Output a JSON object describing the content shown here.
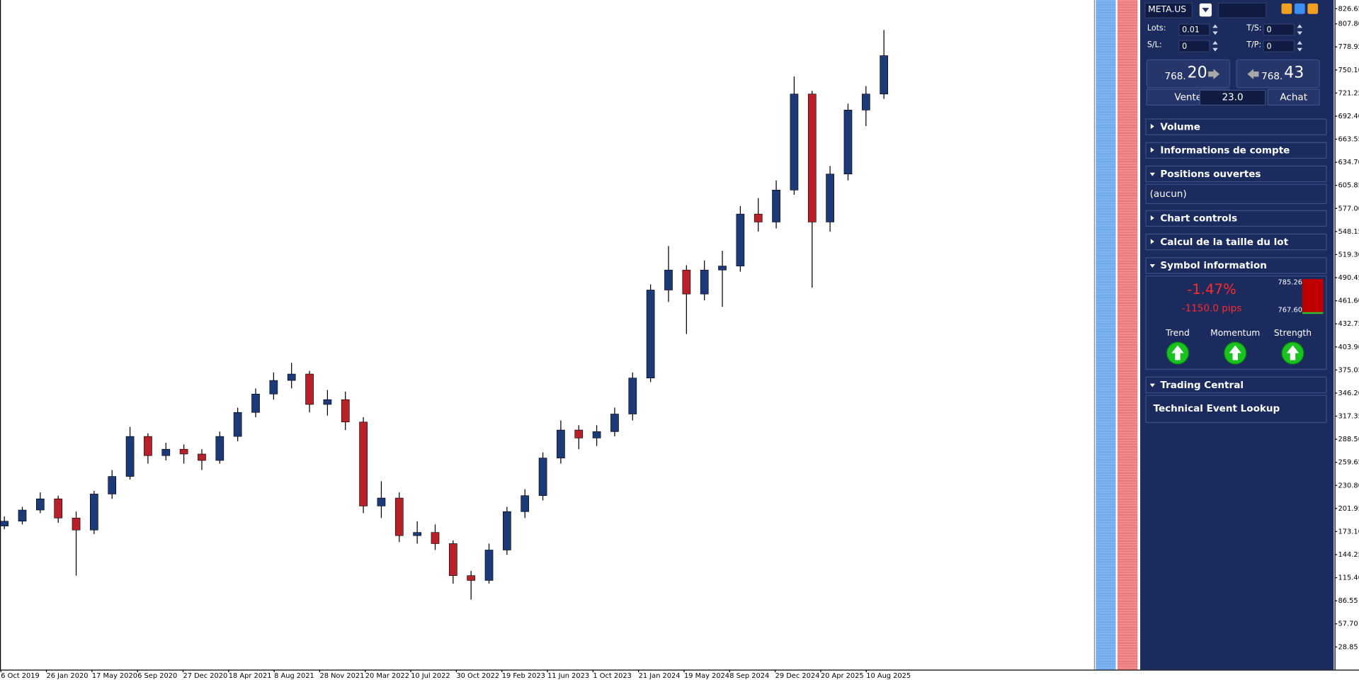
{
  "chart_data": {
    "type": "candlestick",
    "ohlc": [
      [
        180,
        192,
        176,
        186
      ],
      [
        186,
        204,
        182,
        200
      ],
      [
        200,
        222,
        196,
        214
      ],
      [
        214,
        218,
        184,
        190
      ],
      [
        190,
        198,
        118,
        175
      ],
      [
        175,
        224,
        170,
        220
      ],
      [
        220,
        250,
        214,
        242
      ],
      [
        242,
        304,
        238,
        292
      ],
      [
        292,
        296,
        258,
        268
      ],
      [
        268,
        284,
        262,
        276
      ],
      [
        276,
        282,
        258,
        270
      ],
      [
        270,
        276,
        250,
        262
      ],
      [
        262,
        298,
        258,
        292
      ],
      [
        292,
        328,
        286,
        322
      ],
      [
        322,
        352,
        316,
        345
      ],
      [
        345,
        372,
        338,
        362
      ],
      [
        362,
        384,
        352,
        370
      ],
      [
        370,
        374,
        322,
        332
      ],
      [
        332,
        350,
        318,
        338
      ],
      [
        338,
        348,
        300,
        310
      ],
      [
        310,
        316,
        196,
        205
      ],
      [
        205,
        236,
        190,
        215
      ],
      [
        215,
        222,
        160,
        168
      ],
      [
        168,
        186,
        158,
        172
      ],
      [
        172,
        182,
        150,
        158
      ],
      [
        158,
        162,
        108,
        118
      ],
      [
        118,
        124,
        88,
        112
      ],
      [
        112,
        158,
        108,
        150
      ],
      [
        150,
        204,
        144,
        198
      ],
      [
        198,
        226,
        190,
        218
      ],
      [
        218,
        272,
        212,
        265
      ],
      [
        265,
        312,
        258,
        300
      ],
      [
        300,
        306,
        276,
        290
      ],
      [
        290,
        306,
        280,
        298
      ],
      [
        298,
        328,
        292,
        320
      ],
      [
        320,
        372,
        312,
        365
      ],
      [
        365,
        482,
        360,
        475
      ],
      [
        475,
        530,
        460,
        500
      ],
      [
        500,
        506,
        420,
        470
      ],
      [
        470,
        512,
        462,
        500
      ],
      [
        500,
        524,
        454,
        505
      ],
      [
        505,
        580,
        498,
        570
      ],
      [
        570,
        590,
        548,
        560
      ],
      [
        560,
        612,
        552,
        600
      ],
      [
        600,
        742,
        594,
        720
      ],
      [
        720,
        724,
        478,
        560
      ],
      [
        560,
        630,
        548,
        620
      ],
      [
        620,
        708,
        612,
        700
      ],
      [
        700,
        730,
        680,
        720
      ],
      [
        720,
        800,
        714,
        768
      ]
    ],
    "up_color": "#1d3a78",
    "down_color": "#b8202a",
    "wick_color": "#000000",
    "ylim": [
      0.5,
      837.55
    ],
    "yticks": [
      826.65,
      {
        "value": 807.8,
        "label": "807.80"
      },
      778.95,
      {
        "value": 750.1,
        "label": "750.10"
      },
      721.25,
      {
        "value": 692.4,
        "label": "692.40"
      },
      663.55,
      {
        "value": 634.7,
        "label": "634.70"
      },
      605.85,
      {
        "value": 577,
        "label": "577.00"
      },
      548.15,
      {
        "value": 519.3,
        "label": "519.30"
      },
      490.45,
      {
        "value": 461.6,
        "label": "461.60"
      },
      432.75,
      {
        "value": 403.9,
        "label": "403.90"
      },
      375.05,
      {
        "value": 346.2,
        "label": "346.20"
      },
      317.35,
      {
        "value": 288.5,
        "label": "288.50"
      },
      259.65,
      {
        "value": 230.8,
        "label": "230.80"
      },
      201.95,
      {
        "value": 173.1,
        "label": "173.10"
      },
      144.25,
      {
        "value": 115.4,
        "label": "115.40"
      },
      86.55,
      {
        "value": 57.7,
        "label": "57.70"
      },
      28.85
    ],
    "date_labels": [
      "6 Oct 2019",
      "26 Jan 2020",
      "17 May 2020",
      "6 Sep 2020",
      "27 Dec 2020",
      "18 Apr 2021",
      "8 Aug 2021",
      "28 Nov 2021",
      "20 Mar 2022",
      "10 Jul 2022",
      "30 Oct 2022",
      "19 Feb 2023",
      "11 Jun 2023",
      "1 Oct 2023",
      "21 Jan 2024",
      "19 May 2024",
      "8 Sep 2024",
      "29 Dec 2024",
      "20 Apr 2025",
      "10 Aug 2025"
    ]
  },
  "panel": {
    "symbol": "META.US",
    "lots_label": "Lots:",
    "lots": "0.01",
    "ts_label": "T/S:",
    "ts": "0",
    "sl_label": "S/L:",
    "sl": "0",
    "tp_label": "T/P:",
    "tp": "0",
    "sell": {
      "prefix": "768.",
      "digits": "20",
      "label": "Vente"
    },
    "buy": {
      "prefix": "768.",
      "digits": "43",
      "label": "Achat"
    },
    "spread": "23.0",
    "sections": [
      "Volume",
      "Informations de compte",
      "Positions ouvertes",
      "Chart controls",
      "Calcul de la taille du lot",
      "Symbol information",
      "Trading Central"
    ],
    "positions_content": "(aucun)",
    "symbol_info": {
      "change": "-1.47%",
      "pips": "-1150.0 pips",
      "high": "785.26",
      "low": "767.60",
      "indicators": [
        "Trend",
        "Momentum",
        "Strength"
      ]
    },
    "trading_central_link": "Technical Event Lookup"
  }
}
